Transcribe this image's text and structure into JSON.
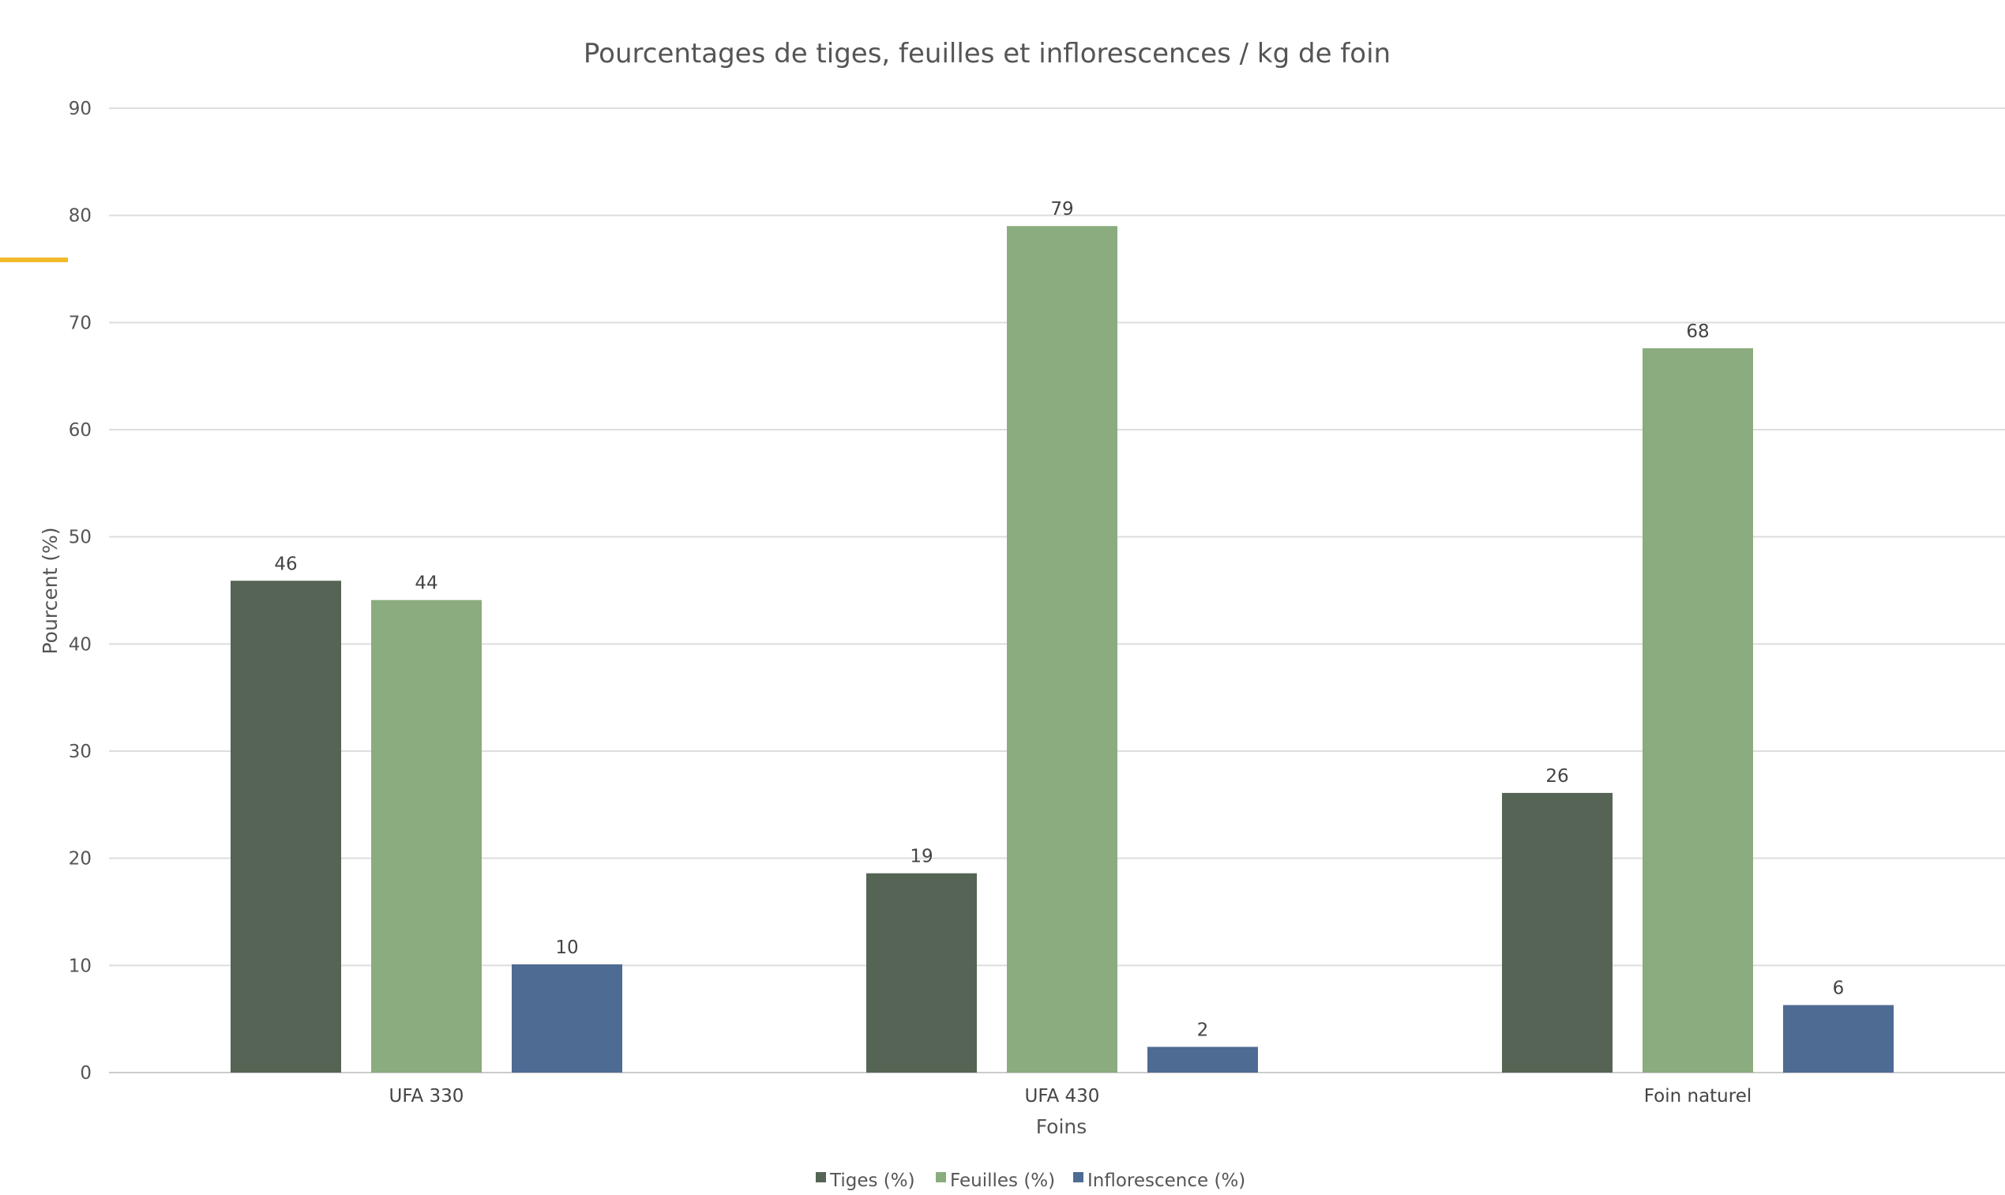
{
  "chart_data": {
    "type": "bar",
    "title": "Pourcentages de tiges, feuilles et inflorescences / kg de foin",
    "xlabel": "Foins",
    "ylabel": "Pourcent (%)",
    "ylim": [
      0,
      90
    ],
    "yticks": [
      0,
      10,
      20,
      30,
      40,
      50,
      60,
      70,
      80,
      90
    ],
    "grid": true,
    "legend_position": "bottom",
    "categories": [
      "UFA 330",
      "UFA 430",
      "Foin naturel"
    ],
    "series": [
      {
        "name": "Tiges (%)",
        "color": "#556454",
        "values": [
          45.9,
          18.6,
          26.1
        ],
        "labels": [
          "46",
          "19",
          "26"
        ]
      },
      {
        "name": "Feuilles (%)",
        "color": "#8bac7e",
        "values": [
          44.1,
          79.0,
          67.6
        ],
        "labels": [
          "44",
          "79",
          "68"
        ]
      },
      {
        "name": "Inflorescence (%)",
        "color": "#4e6b94",
        "values": [
          10.1,
          2.4,
          6.3
        ],
        "labels": [
          "10",
          "2",
          "6"
        ]
      }
    ]
  },
  "decorations": {
    "accent_mark_color": "#f2bb2c"
  }
}
